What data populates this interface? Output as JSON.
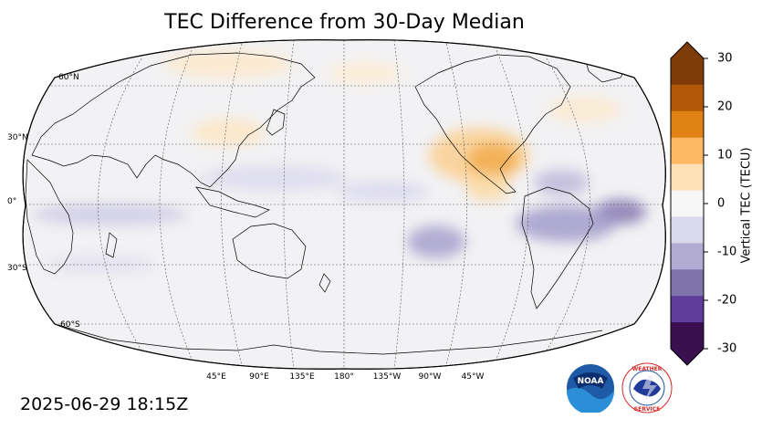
{
  "title": "TEC Difference from 30-Day Median",
  "timestamp": "2025-06-29 18:15Z",
  "map": {
    "projection": "Robinson",
    "central_longitude": "180°",
    "lat_labels": [
      "60°N",
      "30°N",
      "0°",
      "30°S",
      "60°S"
    ],
    "lon_labels": [
      "45°E",
      "90°E",
      "135°E",
      "180°",
      "135°W",
      "90°W",
      "45°W"
    ],
    "anomalies": [
      {
        "name": "north-america-positive",
        "sign": "positive"
      },
      {
        "name": "mexico-positive",
        "sign": "positive"
      },
      {
        "name": "central-america-positive",
        "sign": "positive"
      },
      {
        "name": "south-atlantic-negative",
        "sign": "negative"
      },
      {
        "name": "south-america-negative",
        "sign": "negative"
      },
      {
        "name": "south-pacific-negative",
        "sign": "negative"
      },
      {
        "name": "caribbean-negative",
        "sign": "negative"
      },
      {
        "name": "indian-ocean-negative",
        "sign": "negative"
      },
      {
        "name": "china-positive",
        "sign": "positive"
      },
      {
        "name": "siberia-positive",
        "sign": "positive"
      }
    ]
  },
  "colorbar": {
    "label": "Vertical TEC (TECU)",
    "min": -30,
    "max": 30,
    "ticks": [
      "30",
      "20",
      "10",
      "0",
      "-10",
      "-20",
      "-30"
    ],
    "colors": [
      "#3b0f4f",
      "#5e3c99",
      "#8073ac",
      "#b2abd2",
      "#d8daeb",
      "#f7f7f7",
      "#fee0b6",
      "#fdb863",
      "#e08214",
      "#b35806",
      "#7f3b08"
    ]
  },
  "logos": [
    "NOAA",
    "NATIONAL WEATHER SERVICE"
  ]
}
